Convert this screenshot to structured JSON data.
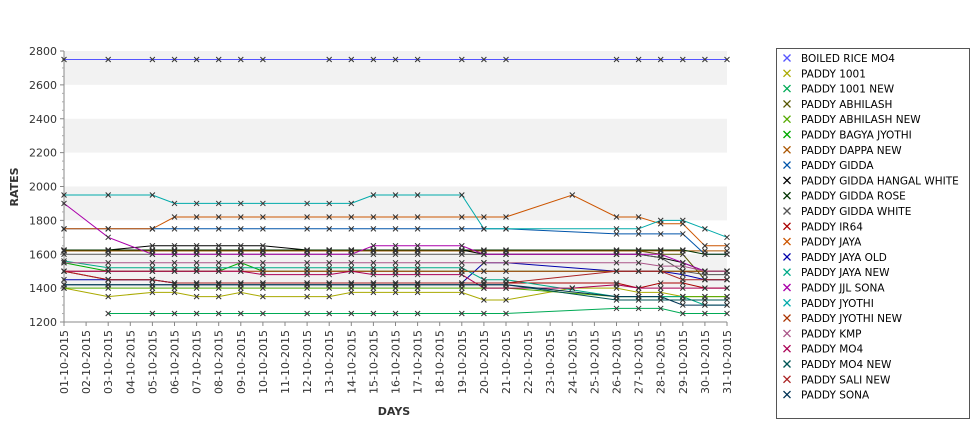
{
  "chart_data": {
    "type": "line",
    "title": "",
    "xlabel": "DAYS",
    "ylabel": "RATES",
    "ylim": [
      1200,
      2800
    ],
    "yticks": [
      1200,
      1400,
      1600,
      1800,
      2000,
      2200,
      2400,
      2600,
      2800
    ],
    "grid": "alternating horizontal bands",
    "legend_position": "right",
    "categories": [
      "01-10-2015",
      "02-10-2015",
      "03-10-2015",
      "04-10-2015",
      "05-10-2015",
      "06-10-2015",
      "07-10-2015",
      "08-10-2015",
      "09-10-2015",
      "10-10-2015",
      "11-10-2015",
      "12-10-2015",
      "13-10-2015",
      "14-10-2015",
      "15-10-2015",
      "16-10-2015",
      "17-10-2015",
      "18-10-2015",
      "19-10-2015",
      "20-10-2015",
      "21-10-2015",
      "22-10-2015",
      "23-10-2015",
      "24-10-2015",
      "25-10-2015",
      "26-10-2015",
      "27-10-2015",
      "28-10-2015",
      "29-10-2015",
      "30-10-2015",
      "31-10-2015"
    ],
    "series": [
      {
        "name": "BOILED RICE MO4",
        "color": "#5555ff",
        "values": [
          2750,
          null,
          2750,
          null,
          2750,
          2750,
          2750,
          2750,
          2750,
          2750,
          null,
          null,
          2750,
          2750,
          2750,
          2750,
          2750,
          null,
          2750,
          2750,
          2750,
          null,
          null,
          null,
          null,
          2750,
          2750,
          2750,
          2750,
          2750,
          2750
        ]
      },
      {
        "name": "PADDY 1001",
        "color": "#aaaa00",
        "values": [
          1400,
          null,
          1350,
          null,
          1375,
          1375,
          1350,
          1350,
          1375,
          1350,
          null,
          1350,
          1350,
          1375,
          1375,
          1375,
          1375,
          null,
          1375,
          1330,
          1330,
          null,
          null,
          1400,
          null,
          1400,
          1375,
          1375,
          1350,
          1350,
          1350
        ]
      },
      {
        "name": "PADDY 1001 NEW",
        "color": "#00aa55",
        "values": [
          null,
          null,
          1250,
          null,
          1250,
          1250,
          1250,
          1250,
          1250,
          1250,
          null,
          1250,
          1250,
          1250,
          1250,
          1250,
          1250,
          null,
          1250,
          1250,
          1250,
          null,
          null,
          null,
          null,
          1280,
          1280,
          1280,
          1250,
          1250,
          1250
        ]
      },
      {
        "name": "PADDY ABHILASH",
        "color": "#555500",
        "values": [
          1620,
          null,
          1620,
          null,
          1620,
          1620,
          1620,
          1620,
          1620,
          1620,
          null,
          1620,
          1620,
          1620,
          1620,
          1620,
          1620,
          null,
          1620,
          1620,
          1620,
          null,
          null,
          null,
          null,
          1620,
          1620,
          1600,
          1600,
          1450,
          1450
        ]
      },
      {
        "name": "PADDY ABHILASH NEW",
        "color": "#55aa00",
        "values": [
          1400,
          null,
          1400,
          null,
          1400,
          1400,
          1400,
          1400,
          1400,
          1400,
          null,
          1400,
          1400,
          1400,
          1400,
          1400,
          1400,
          null,
          1400,
          1400,
          1400,
          null,
          null,
          null,
          null,
          1350,
          1350,
          1350,
          1350,
          1350,
          1350
        ]
      },
      {
        "name": "PADDY BAGYA JYOTHI",
        "color": "#00aa00",
        "values": [
          1550,
          null,
          1500,
          null,
          1500,
          1500,
          1500,
          1500,
          1550,
          1500,
          null,
          1500,
          1500,
          1500,
          1500,
          1500,
          1500,
          null,
          1500,
          1500,
          1500,
          null,
          null,
          null,
          null,
          1500,
          1500,
          1500,
          1500,
          1500,
          1500
        ]
      },
      {
        "name": "PADDY DAPPA NEW",
        "color": "#aa5500",
        "values": [
          1620,
          null,
          1620,
          null,
          1620,
          1620,
          1620,
          1620,
          1620,
          1620,
          null,
          1620,
          1620,
          1620,
          1620,
          1620,
          1620,
          null,
          1620,
          1620,
          1620,
          null,
          null,
          null,
          null,
          1620,
          1620,
          1620,
          1620,
          1620,
          1620
        ]
      },
      {
        "name": "PADDY GIDDA",
        "color": "#0055aa",
        "values": [
          1750,
          null,
          1750,
          null,
          1750,
          1750,
          1750,
          1750,
          1750,
          1750,
          null,
          1750,
          1750,
          1750,
          1750,
          1750,
          1750,
          null,
          1750,
          1750,
          1750,
          null,
          null,
          null,
          null,
          1720,
          1720,
          1720,
          1720,
          1600,
          1600
        ]
      },
      {
        "name": "PADDY GIDDA HANGAL WHITE",
        "color": "#000000",
        "values": [
          1625,
          null,
          1625,
          null,
          1650,
          1650,
          1650,
          1650,
          1650,
          1650,
          null,
          1625,
          1625,
          1625,
          1625,
          1625,
          1625,
          null,
          1625,
          1600,
          1600,
          null,
          null,
          null,
          null,
          1600,
          1600,
          1580,
          1550,
          1500,
          1500
        ]
      },
      {
        "name": "PADDY GIDDA ROSE",
        "color": "#003300",
        "values": [
          1625,
          null,
          1625,
          null,
          1625,
          1625,
          1625,
          1625,
          1625,
          1625,
          null,
          1625,
          1625,
          1625,
          1625,
          1625,
          1625,
          null,
          1625,
          1625,
          1625,
          null,
          null,
          null,
          null,
          1625,
          1625,
          1625,
          1625,
          1600,
          1600
        ]
      },
      {
        "name": "PADDY GIDDA WHITE",
        "color": "#555555",
        "values": [
          1600,
          null,
          1600,
          null,
          1600,
          1600,
          1600,
          1600,
          1600,
          1600,
          null,
          1600,
          1600,
          1600,
          1600,
          1600,
          1600,
          null,
          1600,
          1600,
          1600,
          null,
          null,
          null,
          null,
          1600,
          1600,
          1580,
          1500,
          1480,
          1480
        ]
      },
      {
        "name": "PADDY IR64",
        "color": "#aa0000",
        "values": [
          1500,
          null,
          1450,
          null,
          1450,
          1430,
          1430,
          1430,
          1430,
          1430,
          null,
          1430,
          1430,
          1430,
          1430,
          1430,
          1430,
          null,
          1430,
          1430,
          1430,
          null,
          null,
          null,
          null,
          1430,
          1400,
          1430,
          1430,
          1400,
          1400
        ]
      },
      {
        "name": "PADDY JAYA",
        "color": "#cc5500",
        "values": [
          1750,
          null,
          1750,
          null,
          1750,
          1820,
          1820,
          1820,
          1820,
          1820,
          null,
          1820,
          1820,
          1820,
          1820,
          1820,
          1820,
          null,
          1820,
          1820,
          1820,
          null,
          null,
          1950,
          null,
          1820,
          1820,
          1780,
          1780,
          1650,
          1650
        ]
      },
      {
        "name": "PADDY JAYA  OLD",
        "color": "#0000aa",
        "values": [
          1450,
          null,
          1450,
          null,
          1450,
          1430,
          1430,
          1430,
          1430,
          1430,
          null,
          1430,
          1430,
          1430,
          1430,
          1430,
          1430,
          null,
          1430,
          1550,
          1550,
          null,
          null,
          null,
          null,
          1500,
          1500,
          1500,
          1480,
          1450,
          1450
        ]
      },
      {
        "name": "PADDY JAYA NEW",
        "color": "#00aa88",
        "values": [
          1560,
          null,
          1520,
          null,
          1520,
          1520,
          1520,
          1520,
          1520,
          1520,
          null,
          1520,
          1520,
          1520,
          1520,
          1520,
          1520,
          null,
          1520,
          1450,
          1450,
          null,
          null,
          null,
          null,
          1350,
          1350,
          1350,
          1350,
          1300,
          1300
        ]
      },
      {
        "name": "PADDY JJL SONA",
        "color": "#aa00aa",
        "values": [
          1900,
          null,
          1700,
          null,
          1600,
          1600,
          1600,
          1600,
          1600,
          1600,
          null,
          1600,
          1600,
          1600,
          1650,
          1650,
          1650,
          null,
          1650,
          1600,
          1600,
          null,
          null,
          null,
          null,
          1600,
          1600,
          1600,
          1550,
          1500,
          1500
        ]
      },
      {
        "name": "PADDY JYOTHI",
        "color": "#00aaaa",
        "values": [
          1950,
          null,
          1950,
          null,
          1950,
          1900,
          1900,
          1900,
          1900,
          1900,
          null,
          1900,
          1900,
          1900,
          1950,
          1950,
          1950,
          null,
          1950,
          1750,
          1750,
          null,
          null,
          null,
          null,
          1750,
          1750,
          1800,
          1800,
          1750,
          1700
        ]
      },
      {
        "name": "PADDY JYOTHI NEW",
        "color": "#aa3300",
        "values": [
          1500,
          null,
          1500,
          null,
          1500,
          1500,
          1500,
          1500,
          1500,
          1500,
          null,
          1500,
          1500,
          1500,
          1500,
          1500,
          1500,
          null,
          1500,
          1500,
          1500,
          null,
          null,
          null,
          null,
          1500,
          1500,
          1500,
          1500,
          1500,
          1500
        ]
      },
      {
        "name": "PADDY KMP",
        "color": "#aa5588",
        "values": [
          1550,
          null,
          1550,
          null,
          1550,
          1550,
          1550,
          1550,
          1550,
          1550,
          null,
          1550,
          1550,
          1550,
          1550,
          1550,
          1550,
          null,
          1550,
          1550,
          1550,
          null,
          null,
          null,
          null,
          1550,
          1550,
          1530,
          1530,
          1500,
          1500
        ]
      },
      {
        "name": "PADDY MO4",
        "color": "#aa0055",
        "values": [
          1500,
          null,
          1500,
          null,
          1500,
          1500,
          1500,
          1500,
          1500,
          1480,
          null,
          1480,
          1480,
          1500,
          1480,
          1480,
          1480,
          null,
          1480,
          1400,
          1400,
          null,
          null,
          1400,
          null,
          1420,
          1400,
          1400,
          1400,
          1400,
          1400
        ]
      },
      {
        "name": "PADDY MO4 NEW",
        "color": "#005555",
        "values": [
          1420,
          null,
          1420,
          null,
          1420,
          1420,
          1420,
          1420,
          1420,
          1420,
          null,
          1420,
          1420,
          1420,
          1420,
          1420,
          1420,
          null,
          1420,
          1420,
          1420,
          null,
          null,
          null,
          null,
          1330,
          1330,
          1330,
          1330,
          1330,
          1330
        ]
      },
      {
        "name": "PADDY SALI NEW",
        "color": "#aa2222",
        "values": [
          1500,
          null,
          1450,
          null,
          1450,
          1430,
          1430,
          1430,
          1430,
          1430,
          null,
          1430,
          1430,
          1430,
          1430,
          1430,
          1430,
          null,
          1430,
          1430,
          1430,
          null,
          null,
          null,
          null,
          1500,
          1500,
          1500,
          1450,
          1450,
          1450
        ]
      },
      {
        "name": "PADDY SONA",
        "color": "#003355",
        "values": [
          1420,
          null,
          1420,
          null,
          1420,
          1420,
          1420,
          1420,
          1420,
          1420,
          null,
          1420,
          1420,
          1420,
          1420,
          1420,
          1420,
          null,
          1420,
          1420,
          1420,
          null,
          null,
          null,
          null,
          1350,
          1350,
          1350,
          1300,
          1300,
          1300
        ]
      }
    ]
  }
}
